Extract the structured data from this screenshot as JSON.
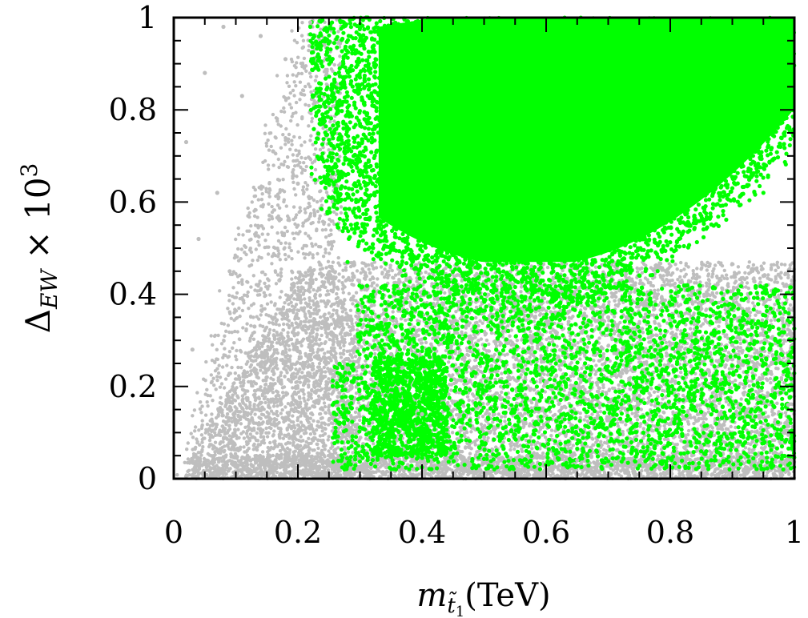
{
  "chart_data": {
    "type": "scatter",
    "title": "",
    "xlabel": {
      "var": "m",
      "sub": "t̃",
      "subsub": "1",
      "unit": "(TeV)"
    },
    "ylabel": {
      "base": "Δ",
      "sub": "EW",
      "times": "× 10",
      "exp": "3"
    },
    "xlim": [
      0,
      1
    ],
    "ylim": [
      0,
      1
    ],
    "xticks": [
      0,
      0.2,
      0.4,
      0.6,
      0.8,
      1
    ],
    "yticks": [
      0,
      0.2,
      0.4,
      0.6,
      0.8,
      1
    ],
    "xtick_labels": [
      "0",
      "0.2",
      "0.4",
      "0.6",
      "0.8",
      "1"
    ],
    "ytick_labels": [
      "0",
      "0.2",
      "0.4",
      "0.6",
      "0.8",
      "1"
    ],
    "grid": false,
    "legend": "none",
    "series": [
      {
        "color": "#bebebe",
        "description_points": [
          [
            0.02,
            0.73
          ],
          [
            0.03,
            0.28
          ],
          [
            0.04,
            0.52
          ],
          [
            0.05,
            0.88
          ],
          [
            0.07,
            0.62
          ],
          [
            0.08,
            0.98
          ],
          [
            0.09,
            0.45
          ],
          [
            0.1,
            0.12
          ],
          [
            0.11,
            0.83
          ],
          [
            0.12,
            0.57
          ],
          [
            0.13,
            0.33
          ],
          [
            0.14,
            0.96
          ],
          [
            0.15,
            0.22
          ],
          [
            0.16,
            0.71
          ],
          [
            0.17,
            0.43
          ],
          [
            0.18,
            0.91
          ],
          [
            0.19,
            0.15
          ],
          [
            0.2,
            0.64
          ],
          [
            0.21,
            0.37
          ],
          [
            0.22,
            0.99
          ],
          [
            0.24,
            0.08
          ],
          [
            0.26,
            0.31
          ],
          [
            0.3,
            0.05
          ],
          [
            0.35,
            0.27
          ],
          [
            0.4,
            0.14
          ],
          [
            0.45,
            0.33
          ],
          [
            0.5,
            0.09
          ],
          [
            0.55,
            0.38
          ],
          [
            0.6,
            0.21
          ],
          [
            0.65,
            0.04
          ],
          [
            0.7,
            0.35
          ],
          [
            0.75,
            0.18
          ],
          [
            0.8,
            0.42
          ],
          [
            0.85,
            0.07
          ],
          [
            0.9,
            0.29
          ],
          [
            0.95,
            0.44
          ],
          [
            0.99,
            0.16
          ]
        ]
      },
      {
        "color": "#00ff00",
        "description_points": [
          [
            0.22,
            0.98
          ],
          [
            0.25,
            0.61
          ],
          [
            0.28,
            0.47
          ],
          [
            0.3,
            0.87
          ],
          [
            0.33,
            0.55
          ],
          [
            0.36,
            0.72
          ],
          [
            0.4,
            0.95
          ],
          [
            0.43,
            0.49
          ],
          [
            0.47,
            0.66
          ],
          [
            0.5,
            0.83
          ],
          [
            0.55,
            0.43
          ],
          [
            0.6,
            0.74
          ],
          [
            0.65,
            0.91
          ],
          [
            0.7,
            0.52
          ],
          [
            0.75,
            0.68
          ],
          [
            0.8,
            0.88
          ],
          [
            0.85,
            0.57
          ],
          [
            0.9,
            0.79
          ],
          [
            0.95,
            0.62
          ],
          [
            0.99,
            0.93
          ],
          [
            0.27,
            0.22
          ],
          [
            0.3,
            0.05
          ],
          [
            0.33,
            0.31
          ],
          [
            0.35,
            0.11
          ],
          [
            0.38,
            0.18
          ],
          [
            0.42,
            0.27
          ],
          [
            0.46,
            0.08
          ],
          [
            0.5,
            0.35
          ],
          [
            0.55,
            0.15
          ],
          [
            0.6,
            0.24
          ],
          [
            0.66,
            0.06
          ],
          [
            0.72,
            0.3
          ],
          [
            0.78,
            0.12
          ],
          [
            0.84,
            0.21
          ],
          [
            0.9,
            0.09
          ],
          [
            0.96,
            0.28
          ],
          [
            0.99,
            0.03
          ]
        ]
      }
    ]
  }
}
